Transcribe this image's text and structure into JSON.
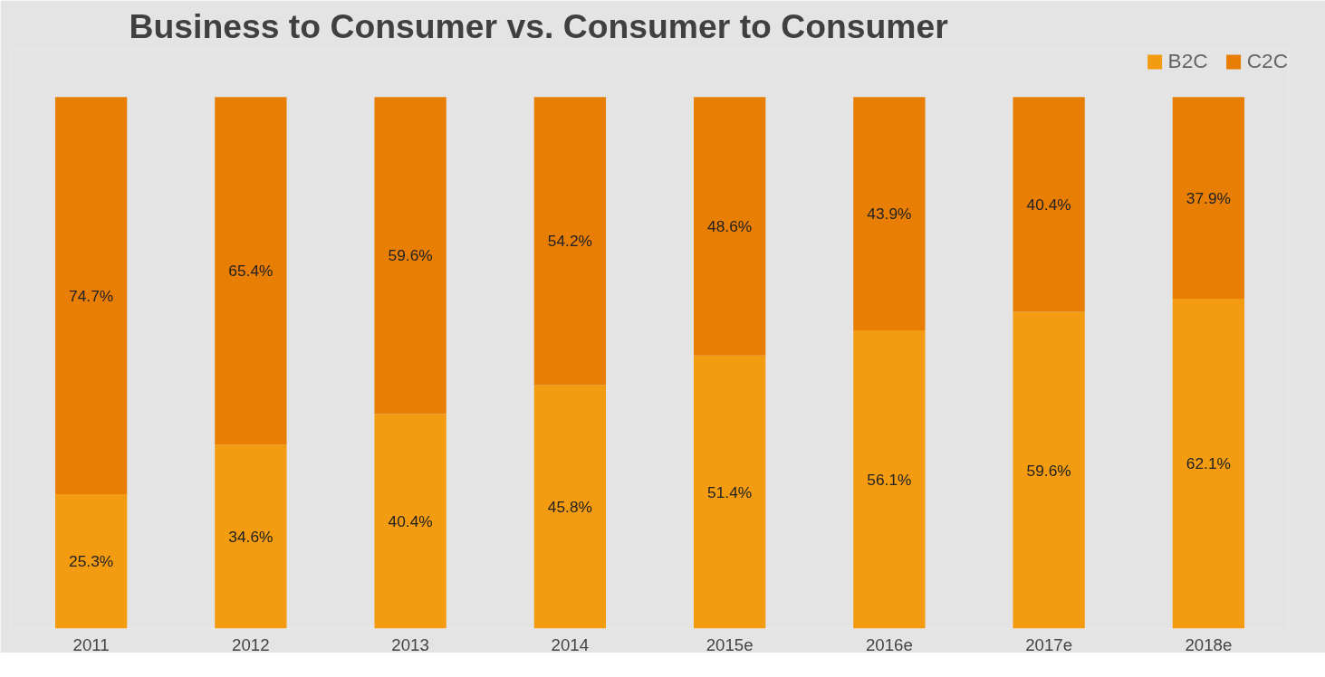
{
  "chart_data": {
    "type": "bar",
    "title": "Business to Consumer vs. Consumer to Consumer",
    "stacked": true,
    "categories": [
      "2011",
      "2012",
      "2013",
      "2014",
      "2015e",
      "2016e",
      "2017e",
      "2018e"
    ],
    "series": [
      {
        "name": "B2C",
        "color": "#f39c12",
        "values": [
          25.3,
          34.6,
          40.4,
          45.8,
          51.4,
          56.1,
          59.6,
          62.1
        ],
        "value_labels": [
          "25.3%",
          "34.6%",
          "40.4%",
          "45.8%",
          "51.4%",
          "56.1%",
          "59.6%",
          "62.1%"
        ]
      },
      {
        "name": "C2C",
        "color": "#e87e04",
        "values": [
          74.7,
          65.4,
          59.6,
          54.2,
          48.6,
          43.9,
          40.4,
          37.9
        ],
        "value_labels": [
          "74.7%",
          "65.4%",
          "59.6%",
          "54.2%",
          "48.6%",
          "43.9%",
          "40.4%",
          "37.9%"
        ]
      }
    ],
    "legend": "top right"
  }
}
